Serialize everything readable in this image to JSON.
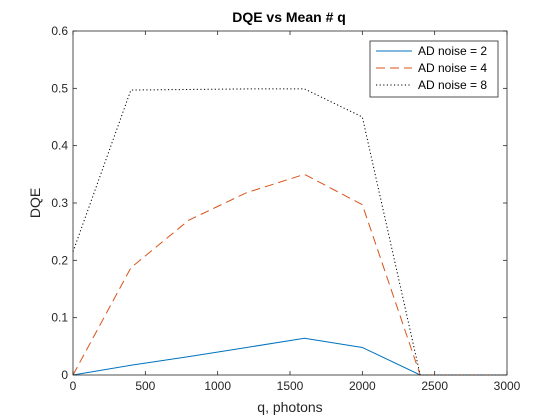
{
  "chart_data": {
    "type": "line",
    "title": "DQE vs Mean # q",
    "xlabel": "q, photons",
    "ylabel": "DQE",
    "xlim": [
      0,
      3000
    ],
    "ylim": [
      0,
      0.6
    ],
    "xticks": [
      0,
      500,
      1000,
      1500,
      2000,
      2500,
      3000
    ],
    "xtick_labels": [
      "0",
      "500",
      "1000",
      "1500",
      "2000",
      "2500",
      "3000"
    ],
    "yticks": [
      0,
      0.1,
      0.2,
      0.3,
      0.4,
      0.5,
      0.6
    ],
    "ytick_labels": [
      "0",
      "0.1",
      "0.2",
      "0.3",
      "0.4",
      "0.5",
      "0.6"
    ],
    "grid": false,
    "legend_position": "top-right",
    "series": [
      {
        "name": "AD noise = 2",
        "color": "#0072BD",
        "style": "solid",
        "points": [
          [
            0,
            0
          ],
          [
            400,
            0.017
          ],
          [
            800,
            0.032
          ],
          [
            1200,
            0.048
          ],
          [
            1600,
            0.064
          ],
          [
            2000,
            0.048
          ],
          [
            2400,
            0
          ],
          [
            2800,
            0
          ],
          [
            3000,
            0
          ]
        ]
      },
      {
        "name": "AD noise = 4",
        "color": "#D95319",
        "style": "dashed",
        "points": [
          [
            0,
            0
          ],
          [
            400,
            0.187
          ],
          [
            800,
            0.27
          ],
          [
            1200,
            0.318
          ],
          [
            1600,
            0.35
          ],
          [
            2000,
            0.297
          ],
          [
            2400,
            0
          ],
          [
            2800,
            0
          ],
          [
            3000,
            0
          ]
        ]
      },
      {
        "name": "AD noise = 8",
        "color": "#000000",
        "style": "dotted",
        "points": [
          [
            0,
            0.215
          ],
          [
            400,
            0.497
          ],
          [
            800,
            0.498
          ],
          [
            1200,
            0.499
          ],
          [
            1600,
            0.499
          ],
          [
            2000,
            0.45
          ],
          [
            2400,
            0
          ],
          [
            2800,
            0
          ],
          [
            3000,
            0
          ]
        ]
      }
    ]
  }
}
